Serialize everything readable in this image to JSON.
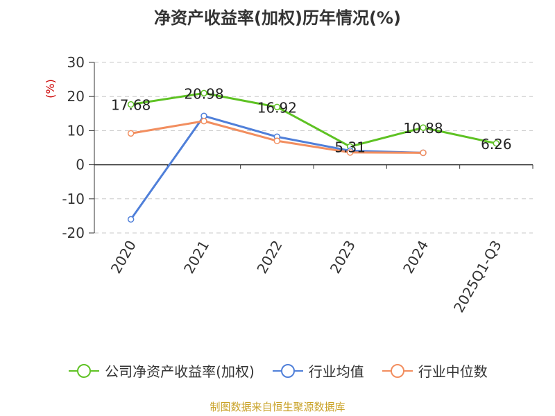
{
  "title": "净资产收益率(加权)历年情况(%)",
  "footer": "制图数据来自恒生聚源数据库",
  "colors": {
    "company": "#5ec223",
    "industry_avg": "#4f7fd9",
    "industry_median": "#f28e5f",
    "ylabel": "#cc0000"
  },
  "chart_data": {
    "type": "line",
    "title": "净资产收益率(加权)历年情况(%)",
    "xlabel": "",
    "ylabel": "(%)",
    "ylim": [
      -20,
      30
    ],
    "yticks": [
      30,
      20,
      10,
      0,
      -10,
      -20
    ],
    "grid": true,
    "legend": "bottom",
    "categories": [
      "2020",
      "2021",
      "2022",
      "2023",
      "2024",
      "2025Q1-Q3"
    ],
    "series": [
      {
        "name": "公司净资产收益率(加权)",
        "values": [
          17.68,
          20.98,
          16.92,
          5.31,
          10.88,
          6.26
        ],
        "labels": [
          "17.68",
          "20.98",
          "16.92",
          "5.31",
          "10.88",
          "6.26"
        ],
        "color": "#5ec223"
      },
      {
        "name": "行业均值",
        "values": [
          -16.0,
          14.3,
          8.2,
          4.1,
          3.5,
          null
        ],
        "color": "#4f7fd9"
      },
      {
        "name": "行业中位数",
        "values": [
          9.2,
          12.8,
          7.0,
          3.6,
          3.5,
          null
        ],
        "color": "#f28e5f"
      }
    ]
  }
}
